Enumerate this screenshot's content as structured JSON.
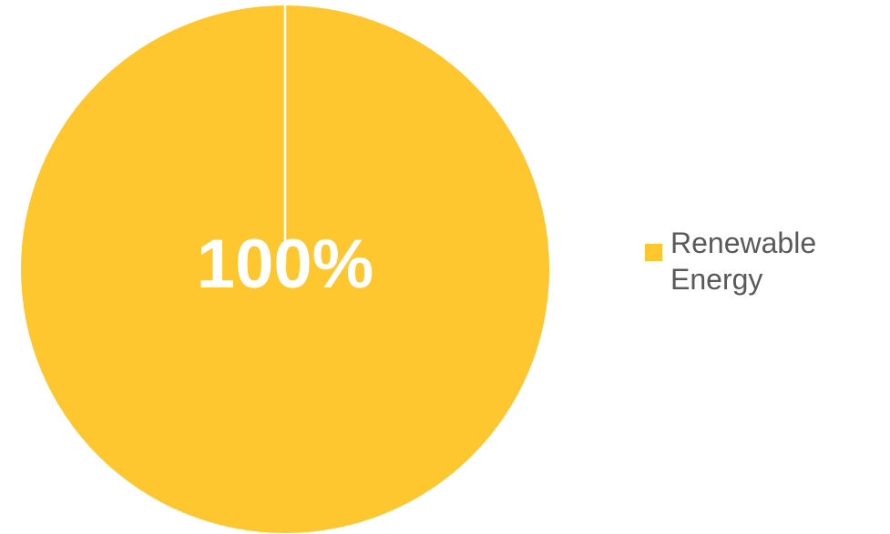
{
  "chart_data": {
    "type": "pie",
    "slices": [
      {
        "label": "Renewable Energy",
        "value": 100,
        "data_label": "100%",
        "color": "#FEC62F"
      }
    ],
    "start_angle_deg": 0,
    "legend": {
      "position": "right"
    }
  }
}
